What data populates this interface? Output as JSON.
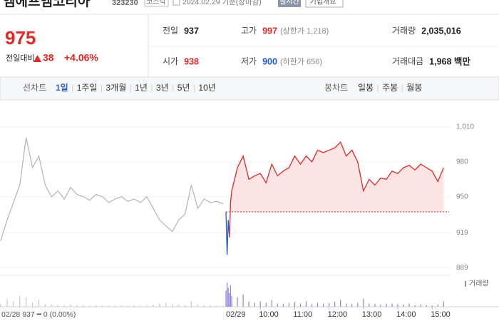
{
  "header": {
    "name": "엠에프엠코리아",
    "code": "323230",
    "market": "코스닥",
    "date": "2024.02.29 기준(장마감)",
    "badges": [
      "실시간",
      "기업개요"
    ]
  },
  "quote": {
    "price": 975,
    "change_label": "전일대비",
    "change": 38,
    "change_pct": "+4.06%",
    "color": "#e22926"
  },
  "stats": [
    [
      {
        "label": "전일",
        "value": 937,
        "color": "#222222"
      },
      {
        "label": "고가",
        "value": 997,
        "note": "(상한가 1,218)",
        "color": "#e22926"
      },
      {
        "label": "거래량",
        "value": "2,035,016",
        "color": "#222222"
      }
    ],
    [
      {
        "label": "시가",
        "value": 938,
        "color": "#e22926"
      },
      {
        "label": "저가",
        "value": 900,
        "note": "(하한가 656)",
        "color": "#2259d9"
      },
      {
        "label": "거래대금",
        "value": "1,968 백만",
        "color": "#222222"
      }
    ]
  ],
  "tabs": {
    "line": "선차트",
    "periods": [
      "1일",
      "1주일",
      "3개월",
      "1년",
      "3년",
      "5년",
      "10년"
    ],
    "active": 0,
    "candle": "봉차트",
    "candle_periods": [
      "일봉",
      "주봉",
      "월봉"
    ]
  },
  "chart_data": {
    "type": "line",
    "ylim": [
      883,
      1021
    ],
    "yticks": [
      {
        "value": 1010,
        "label": "1,010"
      },
      980,
      950,
      919,
      889
    ],
    "baseline": 937,
    "colors": {
      "up": "#e22926",
      "down": "#2259d9",
      "prev": "#b4b4b4",
      "fill": "#fde4e4",
      "volume": "#9185d8",
      "prev_volume": "#c8c8c8"
    },
    "prev_day": {
      "label": "02/28 937 ━ 0 (0.00%)",
      "values": [
        912,
        930,
        945,
        960,
        1001,
        975,
        985,
        960,
        950,
        955,
        948,
        958,
        952,
        950,
        947,
        952,
        950,
        945,
        948,
        950,
        946,
        948,
        945,
        950,
        940,
        930,
        925,
        920,
        930,
        935,
        960,
        940,
        948,
        945,
        946,
        944
      ],
      "volume": [
        10000,
        30000,
        20000,
        40000,
        35000,
        15000,
        25000,
        10000,
        8000,
        6000,
        5000,
        8000,
        6000,
        5000,
        4000,
        6000,
        5000,
        4000,
        5000,
        6000,
        4000,
        5000,
        4000,
        6000,
        8000,
        12000,
        15000,
        10000,
        8000,
        6000,
        20000,
        8000,
        6000,
        5000,
        5000,
        4000
      ]
    },
    "session_label": "02/29",
    "x": [
      "09:00",
      "09:02",
      "09:04",
      "09:06",
      "09:08",
      "09:10",
      "09:20",
      "09:30",
      "09:40",
      "09:50",
      "10:00",
      "10:10",
      "10:20",
      "10:30",
      "10:40",
      "10:50",
      "11:00",
      "11:10",
      "11:20",
      "11:30",
      "11:40",
      "11:50",
      "12:00",
      "12:10",
      "12:20",
      "12:30",
      "12:40",
      "12:50",
      "13:00",
      "13:10",
      "13:20",
      "13:30",
      "13:40",
      "13:50",
      "14:00",
      "14:10",
      "14:20",
      "14:30",
      "14:40",
      "14:50",
      "15:00",
      "15:10",
      "15:20"
    ],
    "values": [
      937,
      900,
      930,
      915,
      945,
      955,
      975,
      985,
      965,
      968,
      970,
      962,
      978,
      968,
      972,
      975,
      985,
      978,
      985,
      980,
      990,
      988,
      990,
      992,
      997,
      985,
      990,
      980,
      955,
      965,
      960,
      966,
      965,
      972,
      970,
      975,
      977,
      973,
      978,
      975,
      972,
      963,
      975
    ],
    "volume": [
      60000,
      90000,
      70000,
      50000,
      80000,
      40000,
      35000,
      45000,
      20000,
      15000,
      20000,
      15000,
      25000,
      12000,
      10000,
      15000,
      18000,
      12000,
      20000,
      10000,
      15000,
      12000,
      14000,
      18000,
      25000,
      12000,
      10000,
      15000,
      30000,
      12000,
      10000,
      8000,
      10000,
      12000,
      10000,
      8000,
      12000,
      6000,
      8000,
      6000,
      5000,
      8000,
      20000
    ],
    "volume_label": "거래량",
    "volume_ylim": [
      0,
      100000
    ],
    "xticks": [
      "10:00",
      "11:00",
      "12:00",
      "13:00",
      "14:00",
      "15:00"
    ]
  }
}
